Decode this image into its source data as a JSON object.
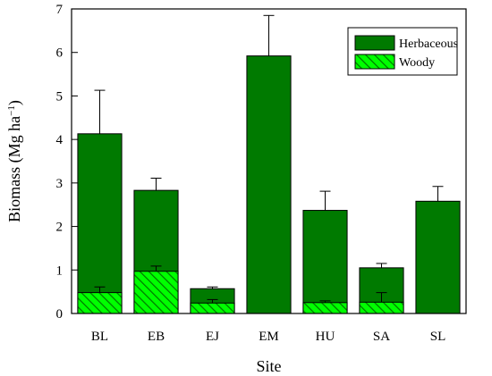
{
  "chart_data": {
    "type": "bar",
    "stacked": true,
    "xlabel": "Site",
    "ylabel": "Biomass (Mg ha",
    "ylabel_superscript": "−1",
    "ylabel_suffix": ")",
    "ylim": [
      0,
      7
    ],
    "yticks": [
      "0",
      "1",
      "2",
      "3",
      "4",
      "5",
      "6",
      "7"
    ],
    "categories": [
      "BL",
      "EB",
      "EJ",
      "EM",
      "HU",
      "SA",
      "SL"
    ],
    "legend_position": "top-right",
    "series": [
      {
        "name": "Herbaceous",
        "values": [
          4.13,
          2.83,
          0.57,
          5.92,
          2.37,
          1.05,
          2.58
        ],
        "error": [
          1.0,
          0.28,
          0.04,
          0.93,
          0.44,
          0.1,
          0.34
        ],
        "color": "#007a00",
        "pattern": "solid"
      },
      {
        "name": "Woody",
        "values": [
          0.48,
          0.97,
          0.24,
          0,
          0.25,
          0.26,
          0
        ],
        "error": [
          0.13,
          0.12,
          0.08,
          0,
          0.04,
          0.22,
          0
        ],
        "color": "#00ff00",
        "hatch_color": "#007a00",
        "pattern": "hatched"
      }
    ]
  }
}
